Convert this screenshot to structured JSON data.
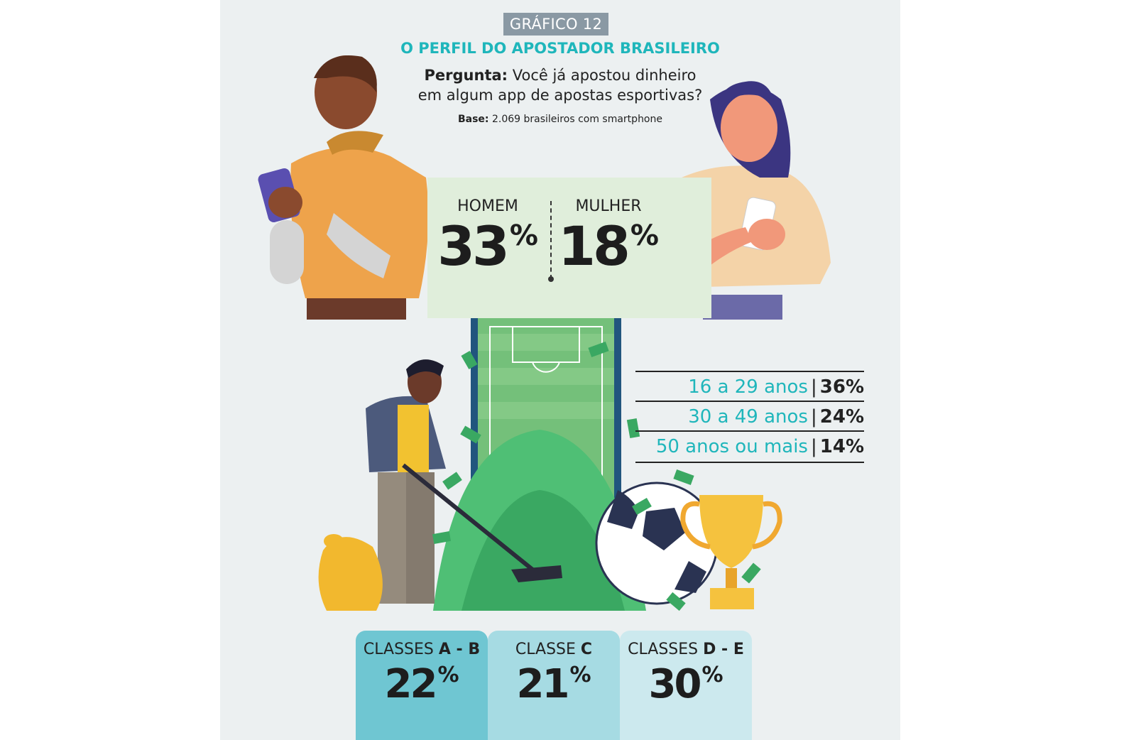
{
  "badge": "GRÁFICO 12",
  "title": "O PERFIL DO APOSTADOR BRASILEIRO",
  "question": {
    "prefix": "Pergunta:",
    "line1": "Você já apostou dinheiro",
    "line2": "em algum app de apostas esportivas?"
  },
  "base": {
    "prefix": "Base:",
    "text": "2.069 brasileiros com smartphone"
  },
  "colors": {
    "accent": "#1fb6bb",
    "class_ab": "#6fc6d2",
    "class_c": "#a6dbe3",
    "class_de": "#cce9ee",
    "band": "#e0eedb"
  },
  "chart_data": [
    {
      "type": "bar",
      "categories": [
        "HOMEM",
        "MULHER"
      ],
      "values": [
        33,
        18
      ],
      "unit": "%"
    },
    {
      "type": "table",
      "categories": [
        "16 a 29 anos",
        "30 a 49 anos",
        "50 anos ou mais"
      ],
      "values": [
        36,
        24,
        14
      ],
      "unit": "%"
    },
    {
      "type": "bar",
      "categories": [
        "CLASSES A - B",
        "CLASSE C",
        "CLASSES D - E"
      ],
      "label_parts": [
        {
          "pre": "CLASSES ",
          "bold": "A - B"
        },
        {
          "pre": "CLASSE ",
          "bold": "C"
        },
        {
          "pre": "CLASSES ",
          "bold": "D - E"
        }
      ],
      "values": [
        22,
        21,
        30
      ],
      "unit": "%"
    }
  ]
}
